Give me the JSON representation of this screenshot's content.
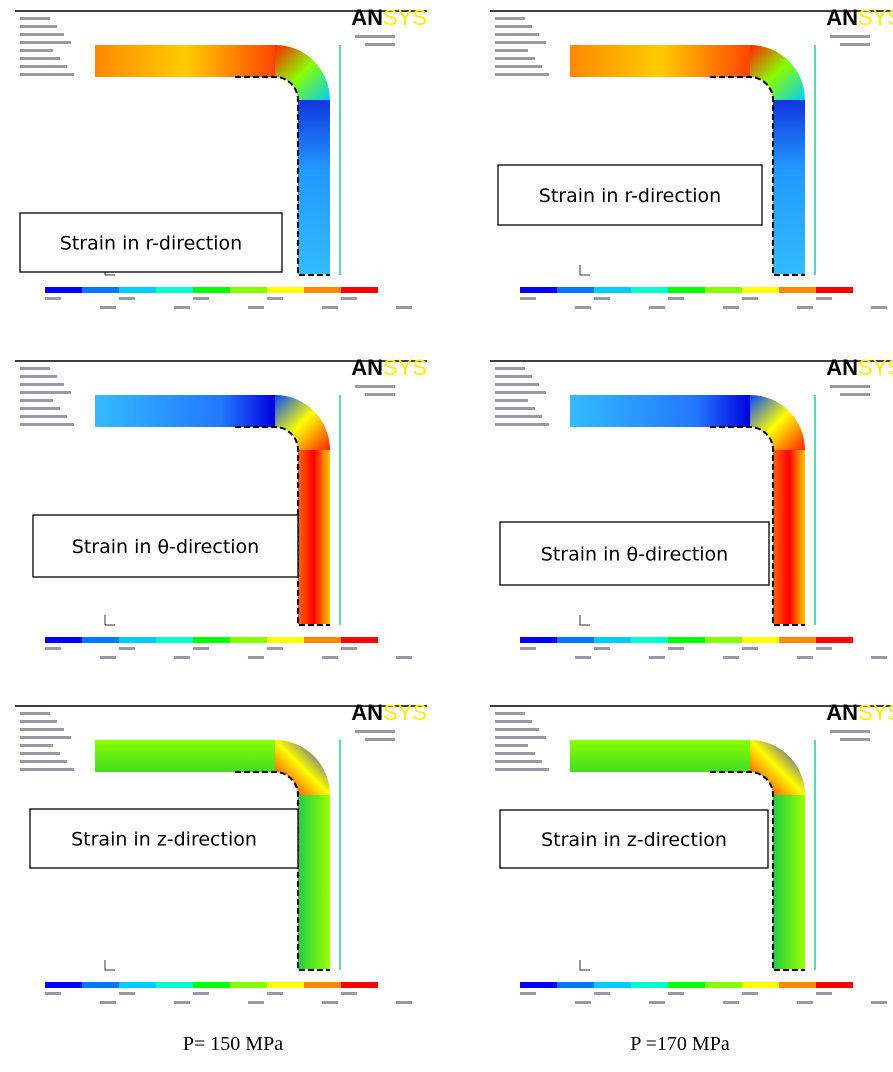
{
  "logo": {
    "bold": "AN",
    "light": "SYS"
  },
  "panels": [
    {
      "label": "Strain in r-direction"
    },
    {
      "label": "Strain in r-direction"
    },
    {
      "label": "Strain in θ-direction"
    },
    {
      "label": "Strain in θ-direction"
    },
    {
      "label": "Strain in z-direction"
    },
    {
      "label": "Strain in z-direction"
    }
  ],
  "captions": [
    "P= 150 MPa",
    "P =170 MPa"
  ]
}
